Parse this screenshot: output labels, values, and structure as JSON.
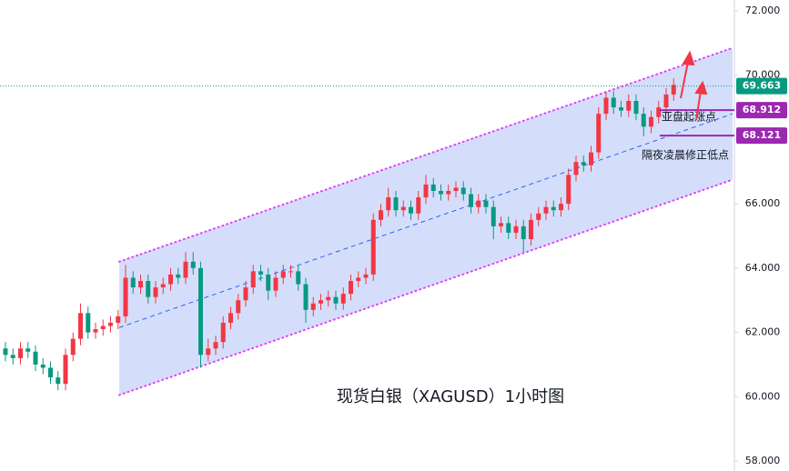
{
  "chart_data": {
    "type": "candlestick",
    "title": "现货白银（XAGUSD）1小时图",
    "annotations": [
      "亚盘起涨点",
      "隔夜凌晨修正低点"
    ],
    "up_color": "#f23645",
    "down_color": "#089981",
    "open": [
      61.5,
      61.3,
      61.2,
      61.5,
      61.4,
      61.0,
      60.9,
      60.6,
      60.4,
      61.3,
      61.8,
      62.6,
      62.0,
      62.1,
      62.2,
      62.3,
      62.5,
      63.7,
      63.4,
      63.6,
      63.1,
      63.4,
      63.5,
      63.8,
      63.7,
      64.2,
      64.0,
      61.3,
      61.5,
      61.7,
      62.3,
      62.6,
      63.0,
      63.4,
      63.9,
      63.8,
      63.3,
      63.7,
      63.9,
      63.9,
      63.5,
      62.7,
      62.9,
      63.0,
      63.1,
      62.9,
      63.2,
      63.6,
      63.7,
      63.8,
      65.5,
      65.8,
      66.2,
      65.8,
      65.9,
      65.7,
      66.2,
      66.6,
      66.4,
      66.3,
      66.4,
      66.5,
      66.3,
      65.9,
      66.1,
      65.9,
      65.3,
      65.4,
      65.1,
      65.3,
      64.9,
      65.5,
      65.7,
      65.9,
      65.8,
      66.0,
      66.9,
      67.3,
      67.2,
      67.6,
      68.8,
      69.3,
      69.0,
      68.9,
      69.2,
      68.8,
      68.4,
      68.7,
      69.0,
      69.4
    ],
    "high": [
      61.7,
      61.5,
      61.7,
      61.7,
      61.6,
      61.2,
      61.1,
      60.8,
      61.5,
      62.0,
      62.9,
      62.8,
      62.3,
      62.4,
      62.5,
      62.7,
      64.1,
      63.9,
      63.8,
      63.8,
      63.6,
      63.7,
      64.0,
      64.0,
      64.5,
      64.5,
      64.2,
      61.8,
      61.9,
      62.5,
      62.8,
      63.2,
      63.6,
      64.1,
      64.1,
      64.0,
      63.9,
      64.1,
      64.1,
      64.1,
      63.7,
      63.1,
      63.2,
      63.3,
      63.3,
      63.4,
      63.8,
      63.9,
      64.0,
      65.7,
      66.0,
      66.5,
      66.4,
      66.1,
      66.1,
      66.4,
      66.9,
      66.8,
      66.6,
      66.6,
      66.7,
      66.7,
      66.5,
      66.3,
      66.3,
      66.1,
      65.6,
      65.6,
      65.5,
      65.5,
      65.7,
      65.9,
      66.1,
      66.1,
      66.2,
      67.1,
      67.5,
      67.5,
      67.8,
      69.0,
      69.5,
      69.5,
      69.2,
      69.4,
      69.4,
      69.0,
      68.9,
      69.2,
      69.6,
      69.9
    ],
    "low": [
      61.1,
      61.0,
      61.0,
      61.2,
      60.8,
      60.7,
      60.4,
      60.2,
      60.2,
      61.1,
      61.6,
      61.8,
      61.8,
      61.9,
      62.0,
      62.1,
      62.3,
      63.2,
      63.2,
      62.9,
      62.9,
      63.2,
      63.3,
      63.5,
      63.5,
      63.8,
      60.9,
      61.1,
      61.3,
      61.5,
      62.1,
      62.4,
      62.8,
      63.2,
      63.6,
      63.0,
      63.1,
      63.5,
      63.7,
      63.3,
      62.3,
      62.5,
      62.7,
      62.8,
      62.7,
      62.7,
      63.0,
      63.4,
      63.5,
      63.6,
      65.3,
      65.6,
      65.6,
      65.6,
      65.5,
      65.5,
      66.0,
      66.2,
      66.1,
      66.1,
      66.2,
      66.1,
      65.7,
      65.7,
      65.7,
      64.9,
      65.1,
      64.9,
      64.9,
      64.5,
      64.7,
      65.3,
      65.5,
      65.6,
      65.6,
      65.8,
      66.7,
      67.0,
      67.0,
      67.4,
      68.6,
      68.8,
      68.7,
      68.7,
      68.6,
      68.1,
      68.2,
      68.5,
      68.8,
      69.2
    ],
    "close": [
      61.3,
      61.2,
      61.5,
      61.4,
      61.0,
      60.9,
      60.6,
      60.4,
      61.3,
      61.8,
      62.6,
      62.0,
      62.1,
      62.2,
      62.3,
      62.5,
      63.7,
      63.4,
      63.6,
      63.1,
      63.4,
      63.5,
      63.8,
      63.7,
      64.2,
      64.0,
      61.3,
      61.5,
      61.7,
      62.3,
      62.6,
      63.0,
      63.4,
      63.9,
      63.8,
      63.3,
      63.7,
      63.9,
      63.9,
      63.5,
      62.7,
      62.9,
      63.0,
      63.1,
      62.9,
      63.2,
      63.6,
      63.7,
      63.8,
      65.5,
      65.8,
      66.2,
      65.8,
      65.9,
      65.7,
      66.2,
      66.6,
      66.4,
      66.3,
      66.4,
      66.5,
      66.3,
      65.9,
      66.1,
      65.9,
      65.3,
      65.4,
      65.1,
      65.3,
      64.9,
      65.5,
      65.7,
      65.9,
      65.8,
      66.0,
      66.9,
      67.3,
      67.2,
      67.6,
      68.8,
      69.3,
      69.0,
      68.9,
      69.2,
      68.8,
      68.4,
      68.7,
      69.0,
      69.4,
      69.7
    ],
    "channel": {
      "upper": [
        64.2,
        70.85
      ],
      "middle": [
        62.15,
        68.8
      ],
      "lower": [
        60.05,
        66.75
      ],
      "fill": "#d4defa",
      "edge_color": "#e040fb",
      "mid_color": "#2962ff"
    },
    "current_price": {
      "value": 69.663,
      "label": "69.663",
      "color": "#089981"
    },
    "levels": [
      {
        "value": 68.912,
        "label": "68.912"
      },
      {
        "value": 68.121,
        "label": "68.121"
      }
    ],
    "level_color": "#9c27b0",
    "ylim": [
      58,
      72
    ],
    "yticks": [
      {
        "value": 58,
        "label": "58.000"
      },
      {
        "value": 60,
        "label": "60.000"
      },
      {
        "value": 62,
        "label": "62.000"
      },
      {
        "value": 64,
        "label": "64.000"
      },
      {
        "value": 66,
        "label": "66.000"
      },
      {
        "value": 68,
        "label": "68.000"
      },
      {
        "value": 70,
        "label": "70.000"
      },
      {
        "value": 72,
        "label": "72.000"
      }
    ]
  }
}
